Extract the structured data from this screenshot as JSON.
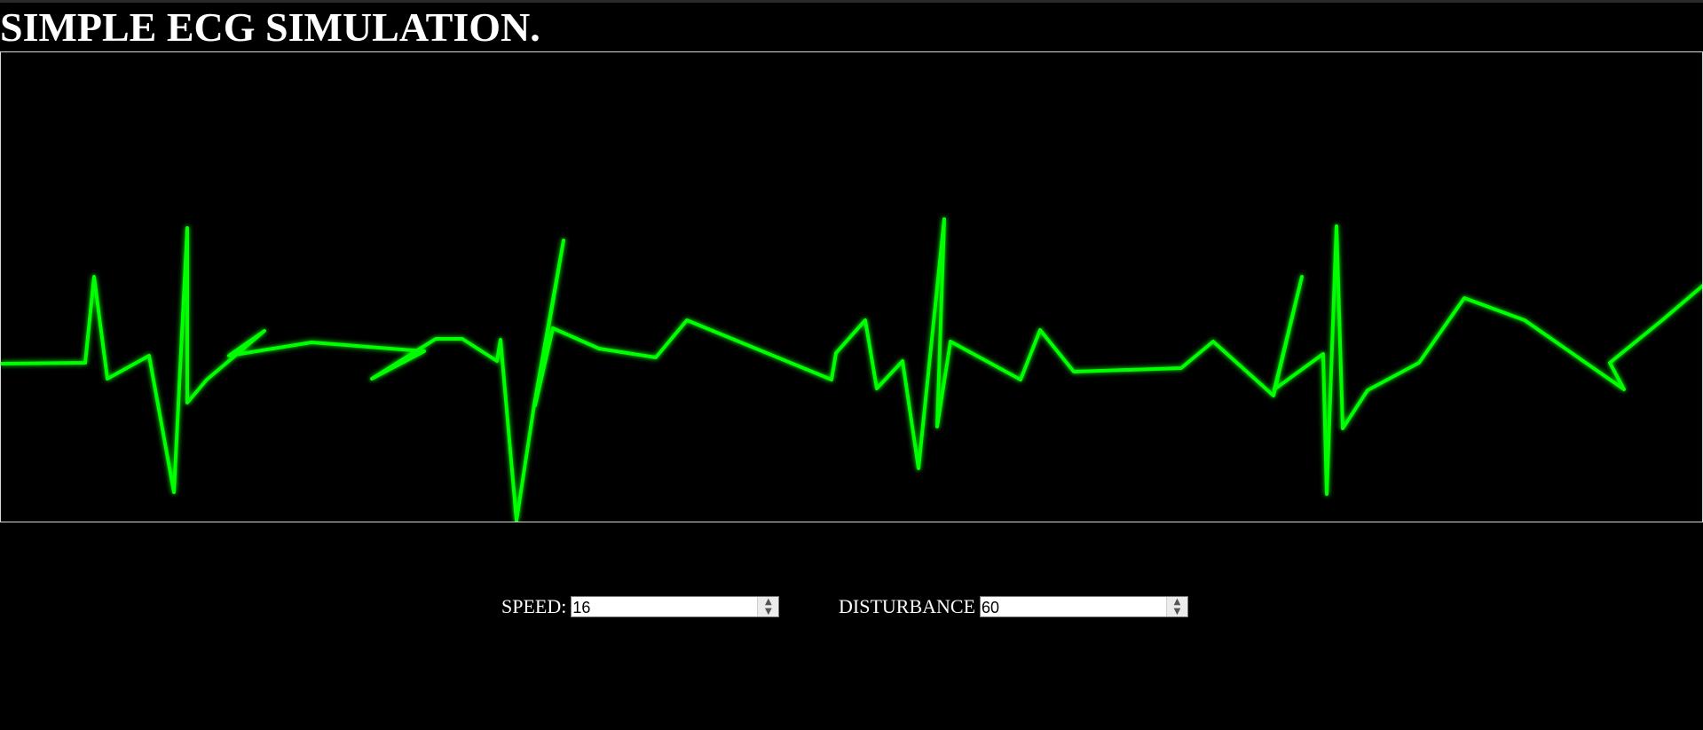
{
  "page": {
    "title": "SIMPLE ECG SIMULATION."
  },
  "ecg": {
    "trace_color": "#00ff00",
    "background_color": "#000000",
    "frame_color": "#d8d8d8"
  },
  "controls": {
    "speed": {
      "label": "SPEED:",
      "value": "16"
    },
    "disturbance": {
      "label": "DISTURBANCE",
      "value": "60"
    }
  },
  "icons": {
    "spinner_up": "▲",
    "spinner_down": "▼"
  }
}
